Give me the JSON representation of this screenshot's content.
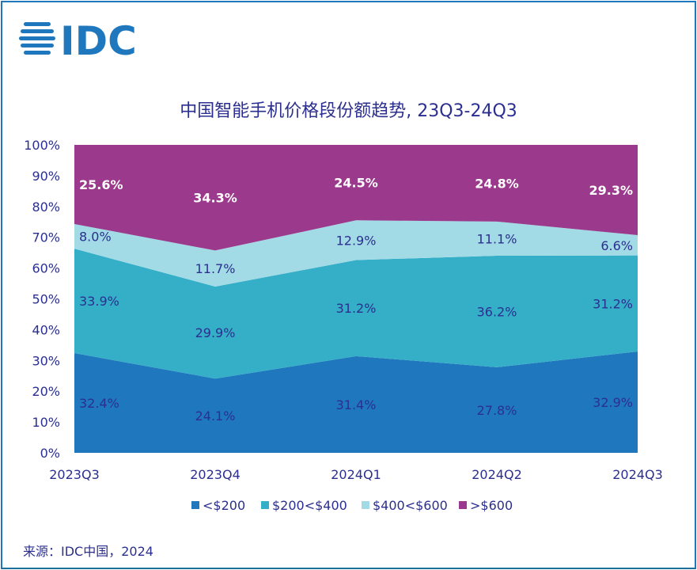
{
  "logo_text": "IDC",
  "source": "来源：IDC中国，2024",
  "chart_data": {
    "type": "area",
    "stacked": true,
    "title": "中国智能手机价格段份额趋势, 23Q3-24Q3",
    "categories": [
      "2023Q3",
      "2023Q4",
      "2024Q1",
      "2024Q2",
      "2024Q3"
    ],
    "ylim": [
      0,
      100
    ],
    "yticks": [
      "0%",
      "10%",
      "20%",
      "30%",
      "40%",
      "50%",
      "60%",
      "70%",
      "80%",
      "90%",
      "100%"
    ],
    "grid": false,
    "legend_position": "bottom",
    "series": [
      {
        "name": "<$200",
        "color": "#1f78be",
        "values": [
          32.4,
          24.1,
          31.4,
          27.8,
          32.9
        ],
        "labels": [
          "32.4%",
          "24.1%",
          "31.4%",
          "27.8%",
          "32.9%"
        ]
      },
      {
        "name": "$200<$400",
        "color": "#35aec8",
        "values": [
          33.9,
          29.9,
          31.2,
          36.2,
          31.2
        ],
        "labels": [
          "33.9%",
          "29.9%",
          "31.2%",
          "36.2%",
          "31.2%"
        ]
      },
      {
        "name": "$400<$600",
        "color": "#a2dbe6",
        "values": [
          8.0,
          11.7,
          12.9,
          11.1,
          6.6
        ],
        "labels": [
          "8.0%",
          "11.7%",
          "12.9%",
          "11.1%",
          "6.6%"
        ]
      },
      {
        "name": ">$600",
        "color": "#9b3a8c",
        "values": [
          25.6,
          34.3,
          24.5,
          24.8,
          29.3
        ],
        "labels": [
          "25.6%",
          "34.3%",
          "24.5%",
          "24.8%",
          "29.3%"
        ]
      }
    ]
  }
}
